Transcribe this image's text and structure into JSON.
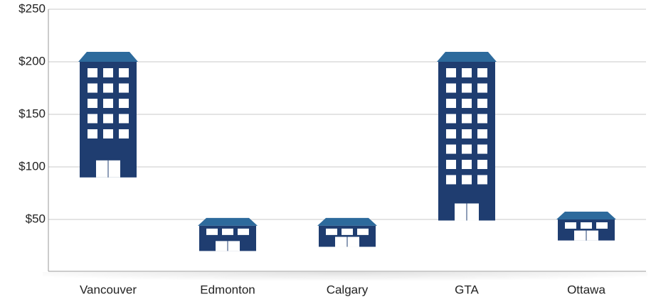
{
  "chart_data": {
    "type": "range_bar",
    "categories": [
      "Vancouver",
      "Edmonton",
      "Calgary",
      "GTA",
      "Ottawa"
    ],
    "ranges": [
      [
        90,
        200
      ],
      [
        20,
        44
      ],
      [
        24,
        44
      ],
      [
        49,
        200
      ],
      [
        30,
        50
      ]
    ],
    "color": "#1f3d70",
    "roof_color": "#2d6a9c",
    "ylim": [
      0,
      250
    ],
    "yticks": [
      {
        "value": 50,
        "label": "$50"
      },
      {
        "value": 100,
        "label": "$100"
      },
      {
        "value": 150,
        "label": "$150"
      },
      {
        "value": 200,
        "label": "$200"
      },
      {
        "value": 250,
        "label": "$250"
      }
    ],
    "grid": true
  }
}
